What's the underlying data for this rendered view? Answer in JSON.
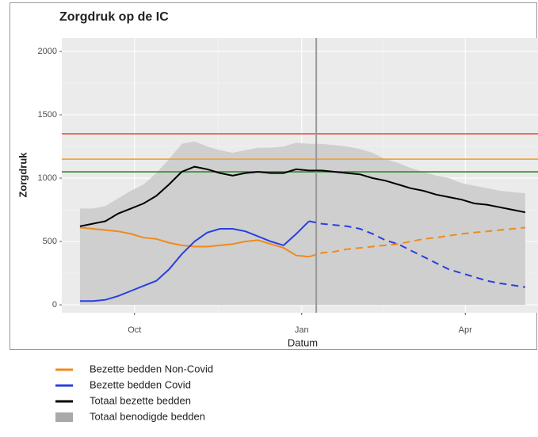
{
  "chart_data": {
    "type": "line",
    "title": "Zorgdruk op de IC",
    "x_label": "Datum",
    "y_label": "Zorgdruk",
    "x": [
      0,
      7,
      14,
      21,
      28,
      35,
      42,
      49,
      56,
      63,
      70,
      77,
      84,
      91,
      98,
      105,
      112,
      119,
      126,
      133,
      140,
      147,
      154,
      161,
      168,
      175,
      182,
      189,
      196,
      203,
      210,
      217,
      224,
      231,
      238,
      245
    ],
    "xlim": [
      -10,
      252
    ],
    "xticks": [
      {
        "value": 30,
        "label": "Oct"
      },
      {
        "value": 122,
        "label": "Jan"
      },
      {
        "value": 212,
        "label": "Apr"
      }
    ],
    "ylim": [
      -62,
      2106
    ],
    "yticks": [
      0,
      500,
      1000,
      1500,
      2000
    ],
    "grid": true,
    "vline": 130,
    "hlines": [
      {
        "value": 1350,
        "color": "#e8463a"
      },
      {
        "value": 1150,
        "color": "#f0a030"
      },
      {
        "value": 1050,
        "color": "#2e8b2e"
      }
    ],
    "series": [
      {
        "name": "Bezette bedden Non-Covid",
        "type": "line",
        "color": "#f08a1c",
        "dashed_after_vline": true,
        "values": [
          610,
          600,
          590,
          580,
          560,
          530,
          520,
          490,
          470,
          460,
          460,
          470,
          480,
          500,
          510,
          480,
          450,
          390,
          380,
          410,
          420,
          440,
          450,
          460,
          470,
          480,
          500,
          520,
          530,
          545,
          560,
          570,
          580,
          590,
          600,
          610
        ]
      },
      {
        "name": "Bezette bedden Covid",
        "type": "line",
        "color": "#2a3fe0",
        "dashed_after_vline": true,
        "values": [
          30,
          30,
          40,
          70,
          110,
          150,
          190,
          280,
          400,
          500,
          570,
          600,
          600,
          580,
          540,
          500,
          470,
          560,
          660,
          640,
          630,
          620,
          600,
          560,
          510,
          480,
          430,
          380,
          330,
          280,
          250,
          220,
          190,
          170,
          155,
          140
        ]
      },
      {
        "name": "Totaal bezette bedden",
        "type": "line",
        "color": "#000000",
        "dashed_after_vline": false,
        "values": [
          620,
          640,
          660,
          720,
          760,
          800,
          860,
          950,
          1050,
          1090,
          1070,
          1040,
          1020,
          1040,
          1050,
          1040,
          1040,
          1070,
          1060,
          1060,
          1050,
          1040,
          1030,
          1000,
          980,
          950,
          920,
          900,
          870,
          850,
          830,
          800,
          790,
          770,
          750,
          730
        ]
      },
      {
        "name": "Totaal benodigde bedden",
        "type": "area",
        "color": "#cfcfcf",
        "dashed_after_vline": false,
        "values": [
          760,
          760,
          780,
          840,
          900,
          950,
          1040,
          1150,
          1270,
          1290,
          1250,
          1220,
          1200,
          1220,
          1240,
          1240,
          1250,
          1280,
          1270,
          1270,
          1260,
          1250,
          1230,
          1200,
          1150,
          1120,
          1080,
          1050,
          1020,
          1000,
          960,
          940,
          920,
          900,
          890,
          880
        ]
      }
    ]
  }
}
